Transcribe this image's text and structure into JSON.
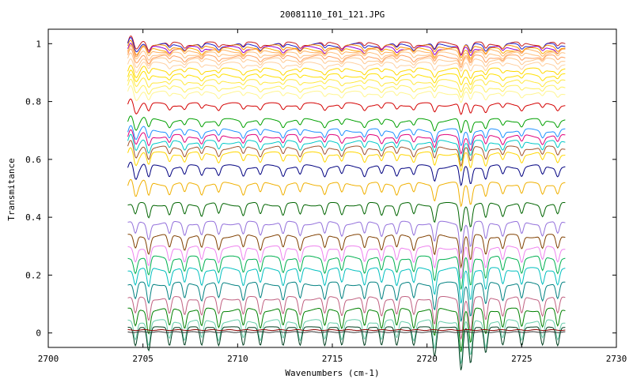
{
  "chart_data": {
    "type": "line",
    "title": "20081110_I01_121.JPG",
    "xlabel": "Wavenumbers (cm-1)",
    "ylabel": "Transmitance",
    "xlim": [
      2700,
      2730
    ],
    "ylim": [
      -0.05,
      1.05
    ],
    "xticks": [
      "2700",
      "2705",
      "2710",
      "2715",
      "2720",
      "2725",
      "2730"
    ],
    "yticks": [
      "0",
      "0.2",
      "0.4",
      "0.6",
      "0.8",
      "1"
    ],
    "grid": false,
    "legend": "none",
    "x_range_data": [
      2704.2,
      2727.3
    ],
    "series": [
      {
        "baseline": 1.0,
        "color": "#c81e1e"
      },
      {
        "baseline": 0.995,
        "color": "#1e1ec8"
      },
      {
        "baseline": 0.99,
        "color": "#ff8c00"
      },
      {
        "baseline": 0.985,
        "color": "#9400d3"
      },
      {
        "baseline": 0.98,
        "color": "#ffa500"
      },
      {
        "baseline": 0.975,
        "color": "#ffb060"
      },
      {
        "baseline": 0.965,
        "color": "#ffc080"
      },
      {
        "baseline": 0.955,
        "color": "#ffa060"
      },
      {
        "baseline": 0.945,
        "color": "#ffc890"
      },
      {
        "baseline": 0.93,
        "color": "#ffd0a0"
      },
      {
        "baseline": 0.91,
        "color": "#ffd800"
      },
      {
        "baseline": 0.89,
        "color": "#ffe000"
      },
      {
        "baseline": 0.87,
        "color": "#ffe840"
      },
      {
        "baseline": 0.85,
        "color": "#fff060"
      },
      {
        "baseline": 0.83,
        "color": "#fff590"
      },
      {
        "baseline": 0.79,
        "color": "#d40000"
      },
      {
        "baseline": 0.735,
        "color": "#00a000"
      },
      {
        "baseline": 0.7,
        "color": "#1e90ff"
      },
      {
        "baseline": 0.68,
        "color": "#e0007a"
      },
      {
        "baseline": 0.66,
        "color": "#00c8c8"
      },
      {
        "baseline": 0.64,
        "color": "#a0522d"
      },
      {
        "baseline": 0.62,
        "color": "#ffd700"
      },
      {
        "baseline": 0.575,
        "color": "#000080"
      },
      {
        "baseline": 0.515,
        "color": "#f0b000"
      },
      {
        "baseline": 0.445,
        "color": "#006400"
      },
      {
        "baseline": 0.38,
        "color": "#9370db"
      },
      {
        "baseline": 0.335,
        "color": "#804000"
      },
      {
        "baseline": 0.295,
        "color": "#ee82ee"
      },
      {
        "baseline": 0.26,
        "color": "#00b050"
      },
      {
        "baseline": 0.22,
        "color": "#00bfbf"
      },
      {
        "baseline": 0.17,
        "color": "#008080"
      },
      {
        "baseline": 0.12,
        "color": "#c06080"
      },
      {
        "baseline": 0.08,
        "color": "#008000"
      },
      {
        "baseline": 0.04,
        "color": "#66cdaa"
      },
      {
        "baseline": 0.02,
        "color": "#004020"
      },
      {
        "baseline": 0.01,
        "color": "#8b0000"
      },
      {
        "baseline": 0.003,
        "color": "#333333"
      }
    ]
  }
}
